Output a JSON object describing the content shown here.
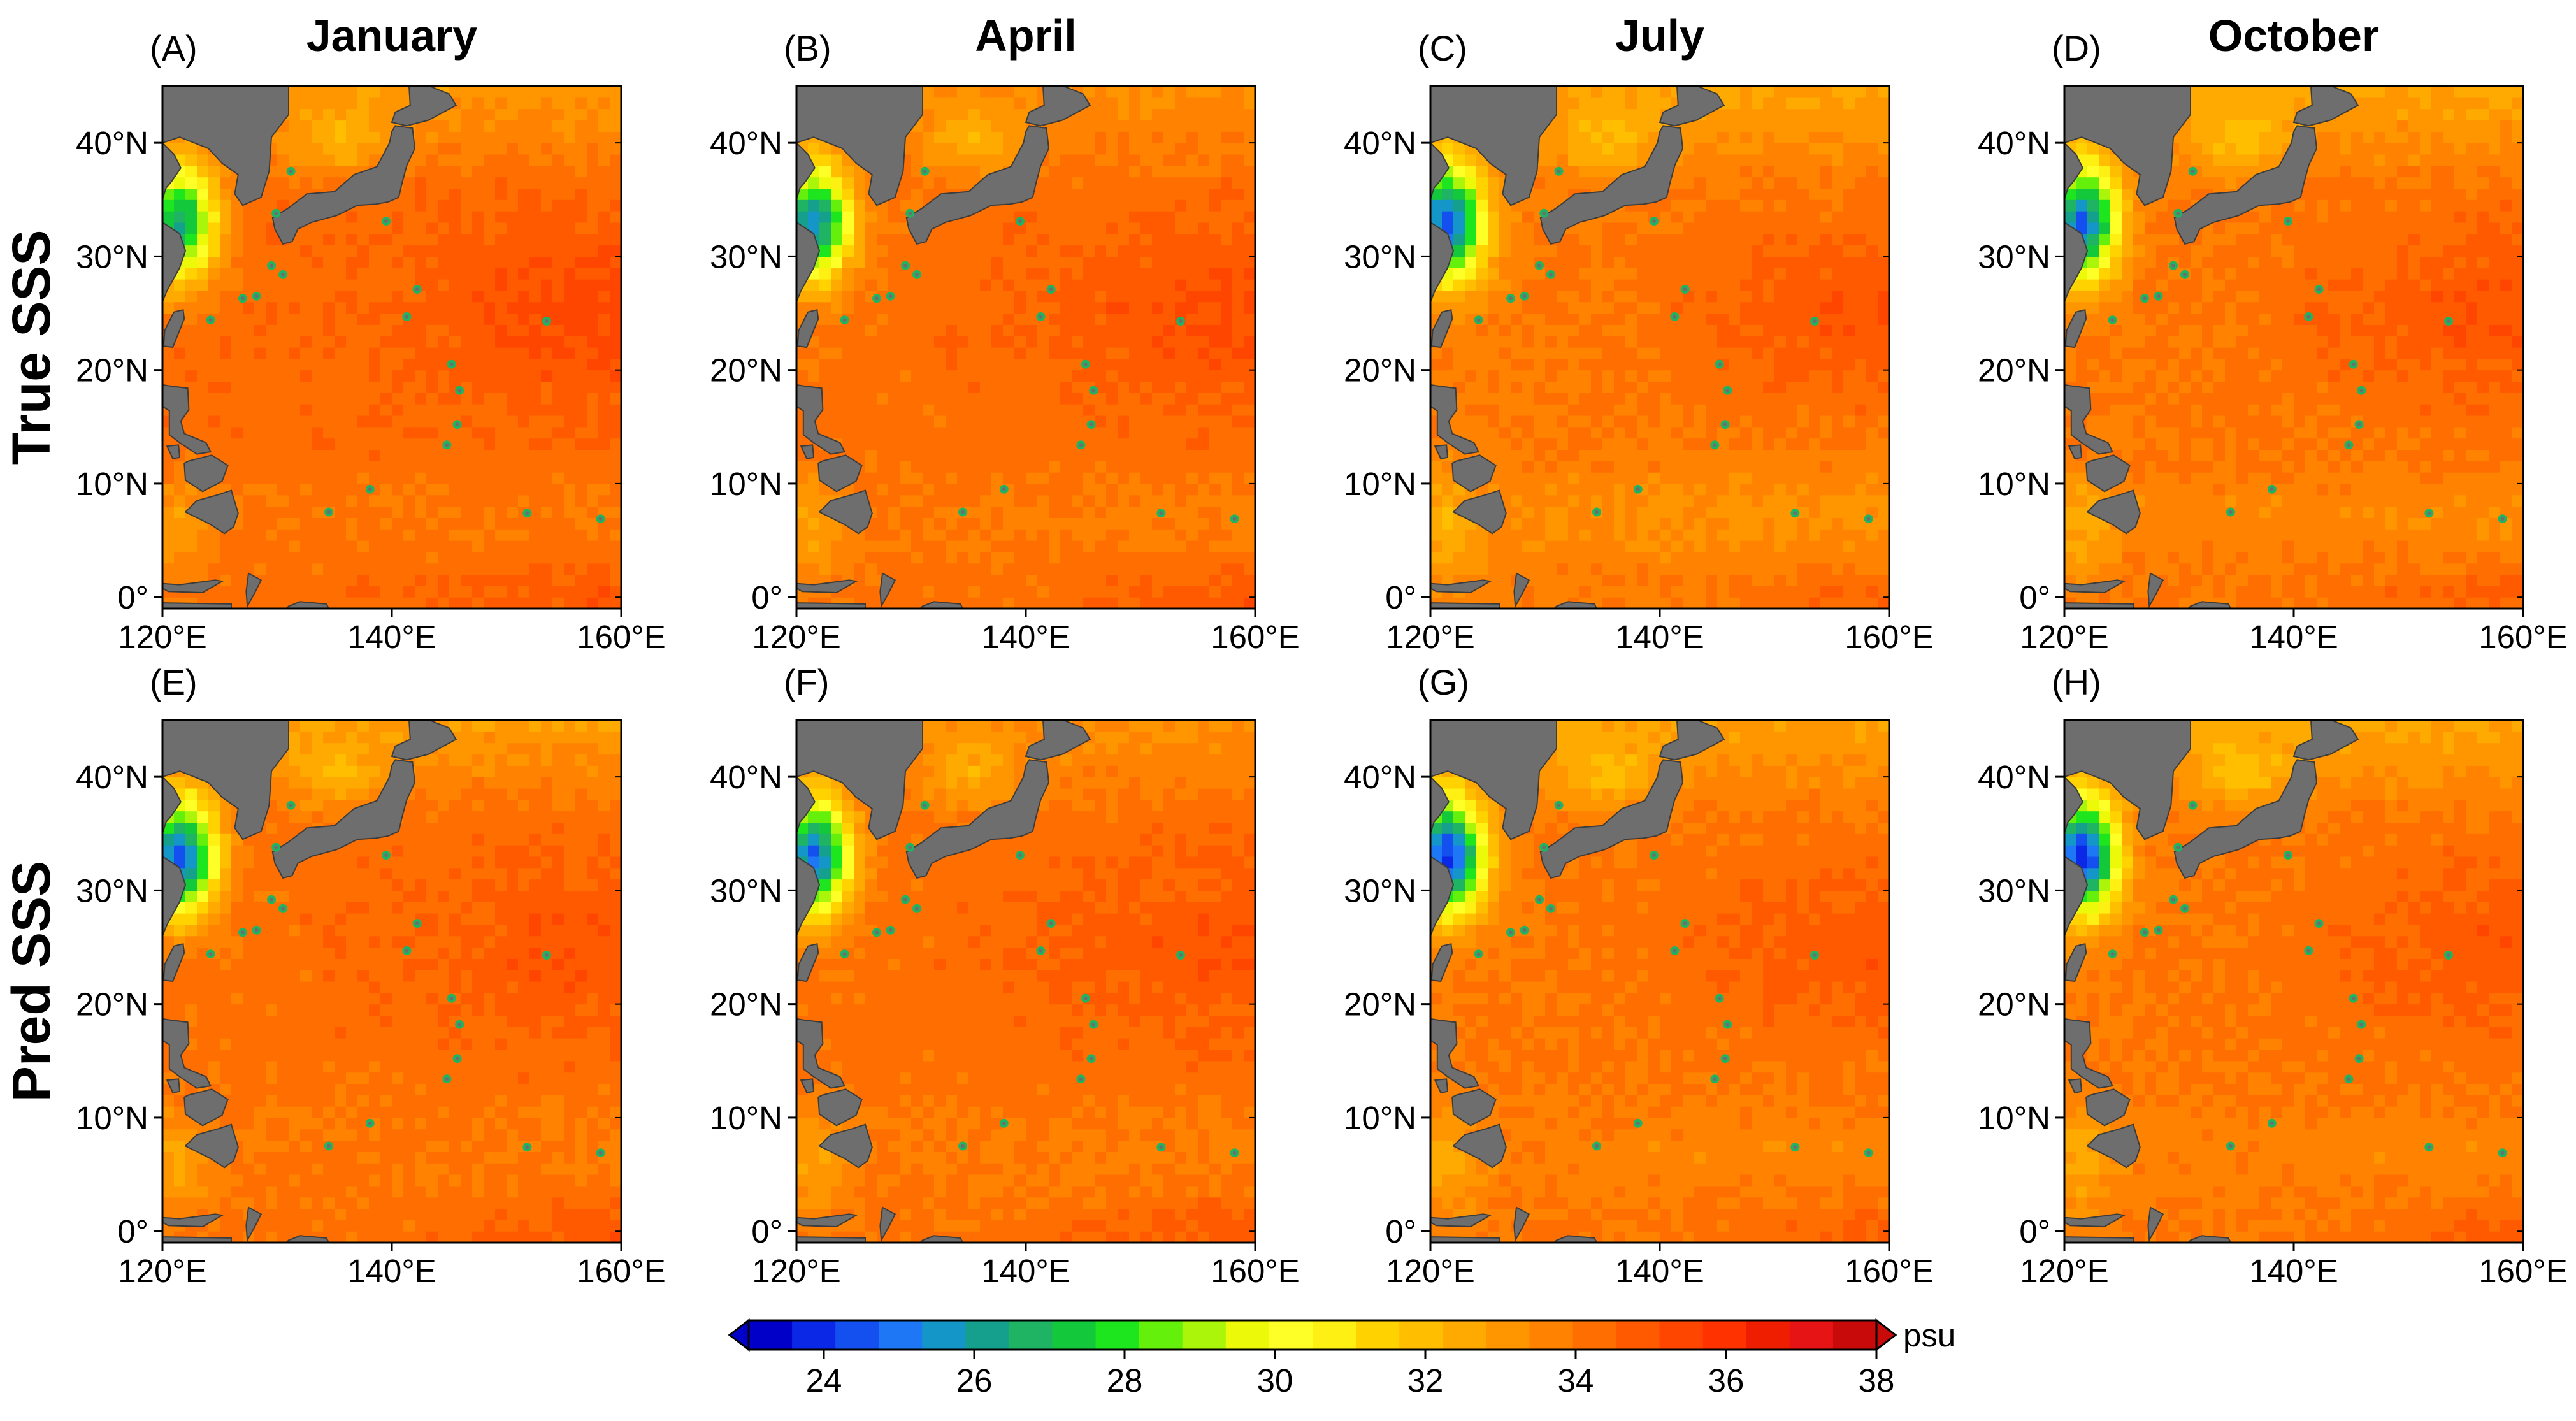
{
  "chart_data": {
    "type": "heatmap",
    "description_variable": "Sea surface salinity",
    "column_titles": [
      "January",
      "April",
      "July",
      "October"
    ],
    "row_titles": [
      "True SSS",
      "Pred SSS"
    ],
    "panel_labels": [
      "(A)",
      "(B)",
      "(C)",
      "(D)",
      "(E)",
      "(F)",
      "(G)",
      "(H)"
    ],
    "lon_range": [
      120,
      160
    ],
    "lat_range": [
      -1,
      45
    ],
    "x_tick_values": [
      120,
      140,
      160
    ],
    "x_tick_labels": [
      "120°E",
      "140°E",
      "160°E"
    ],
    "y_tick_values": [
      0,
      10,
      20,
      30,
      40
    ],
    "y_tick_labels": [
      "0°",
      "10°N",
      "20°N",
      "30°N",
      "40°N"
    ],
    "colorbar": {
      "range": [
        23,
        38
      ],
      "tick_values": [
        24,
        26,
        28,
        30,
        32,
        34,
        36,
        38
      ],
      "tick_labels": [
        "24",
        "26",
        "28",
        "30",
        "32",
        "34",
        "36",
        "38"
      ],
      "unit": "psu",
      "extend": "both",
      "colors": [
        "#0000c8",
        "#0a28e6",
        "#1450f0",
        "#1e78f5",
        "#1496c8",
        "#14a08c",
        "#1eb464",
        "#14c83c",
        "#1ee61e",
        "#64f00a",
        "#aaf50a",
        "#ecfa0a",
        "#ffff28",
        "#fff014",
        "#ffd200",
        "#ffbe00",
        "#ffaa00",
        "#ff9600",
        "#ff8200",
        "#ff6e00",
        "#ff5a00",
        "#ff4600",
        "#ff3200",
        "#f01e00",
        "#e61414",
        "#c80a0a"
      ]
    },
    "panels": [
      {
        "label": "(A)",
        "row": "True SSS",
        "month": "January",
        "open_ocean_sss_psu": 34.3,
        "subtropical_max_psu": 35.3,
        "equatorial_band_psu": 34.0,
        "coastal_min_psu": 26.5,
        "land_color": "#6e6e6e"
      },
      {
        "label": "(B)",
        "row": "True SSS",
        "month": "April",
        "open_ocean_sss_psu": 34.2,
        "subtropical_max_psu": 35.2,
        "equatorial_band_psu": 33.8,
        "coastal_min_psu": 25.5
      },
      {
        "label": "(C)",
        "row": "True SSS",
        "month": "July",
        "open_ocean_sss_psu": 33.9,
        "subtropical_max_psu": 35.0,
        "equatorial_band_psu": 33.2,
        "coastal_min_psu": 24.5
      },
      {
        "label": "(D)",
        "row": "True SSS",
        "month": "October",
        "open_ocean_sss_psu": 34.0,
        "subtropical_max_psu": 35.0,
        "equatorial_band_psu": 33.5,
        "coastal_min_psu": 24.8
      },
      {
        "label": "(E)",
        "row": "Pred SSS",
        "month": "January",
        "open_ocean_sss_psu": 34.2,
        "subtropical_max_psu": 35.0,
        "equatorial_band_psu": 33.9,
        "coastal_min_psu": 24.6
      },
      {
        "label": "(F)",
        "row": "Pred SSS",
        "month": "April",
        "open_ocean_sss_psu": 34.2,
        "subtropical_max_psu": 35.0,
        "equatorial_band_psu": 33.8,
        "coastal_min_psu": 24.8
      },
      {
        "label": "(G)",
        "row": "Pred SSS",
        "month": "July",
        "open_ocean_sss_psu": 34.0,
        "subtropical_max_psu": 34.9,
        "equatorial_band_psu": 33.6,
        "coastal_min_psu": 24.0
      },
      {
        "label": "(H)",
        "row": "Pred SSS",
        "month": "October",
        "open_ocean_sss_psu": 34.0,
        "subtropical_max_psu": 34.9,
        "equatorial_band_psu": 33.6,
        "coastal_min_psu": 23.8
      }
    ]
  }
}
